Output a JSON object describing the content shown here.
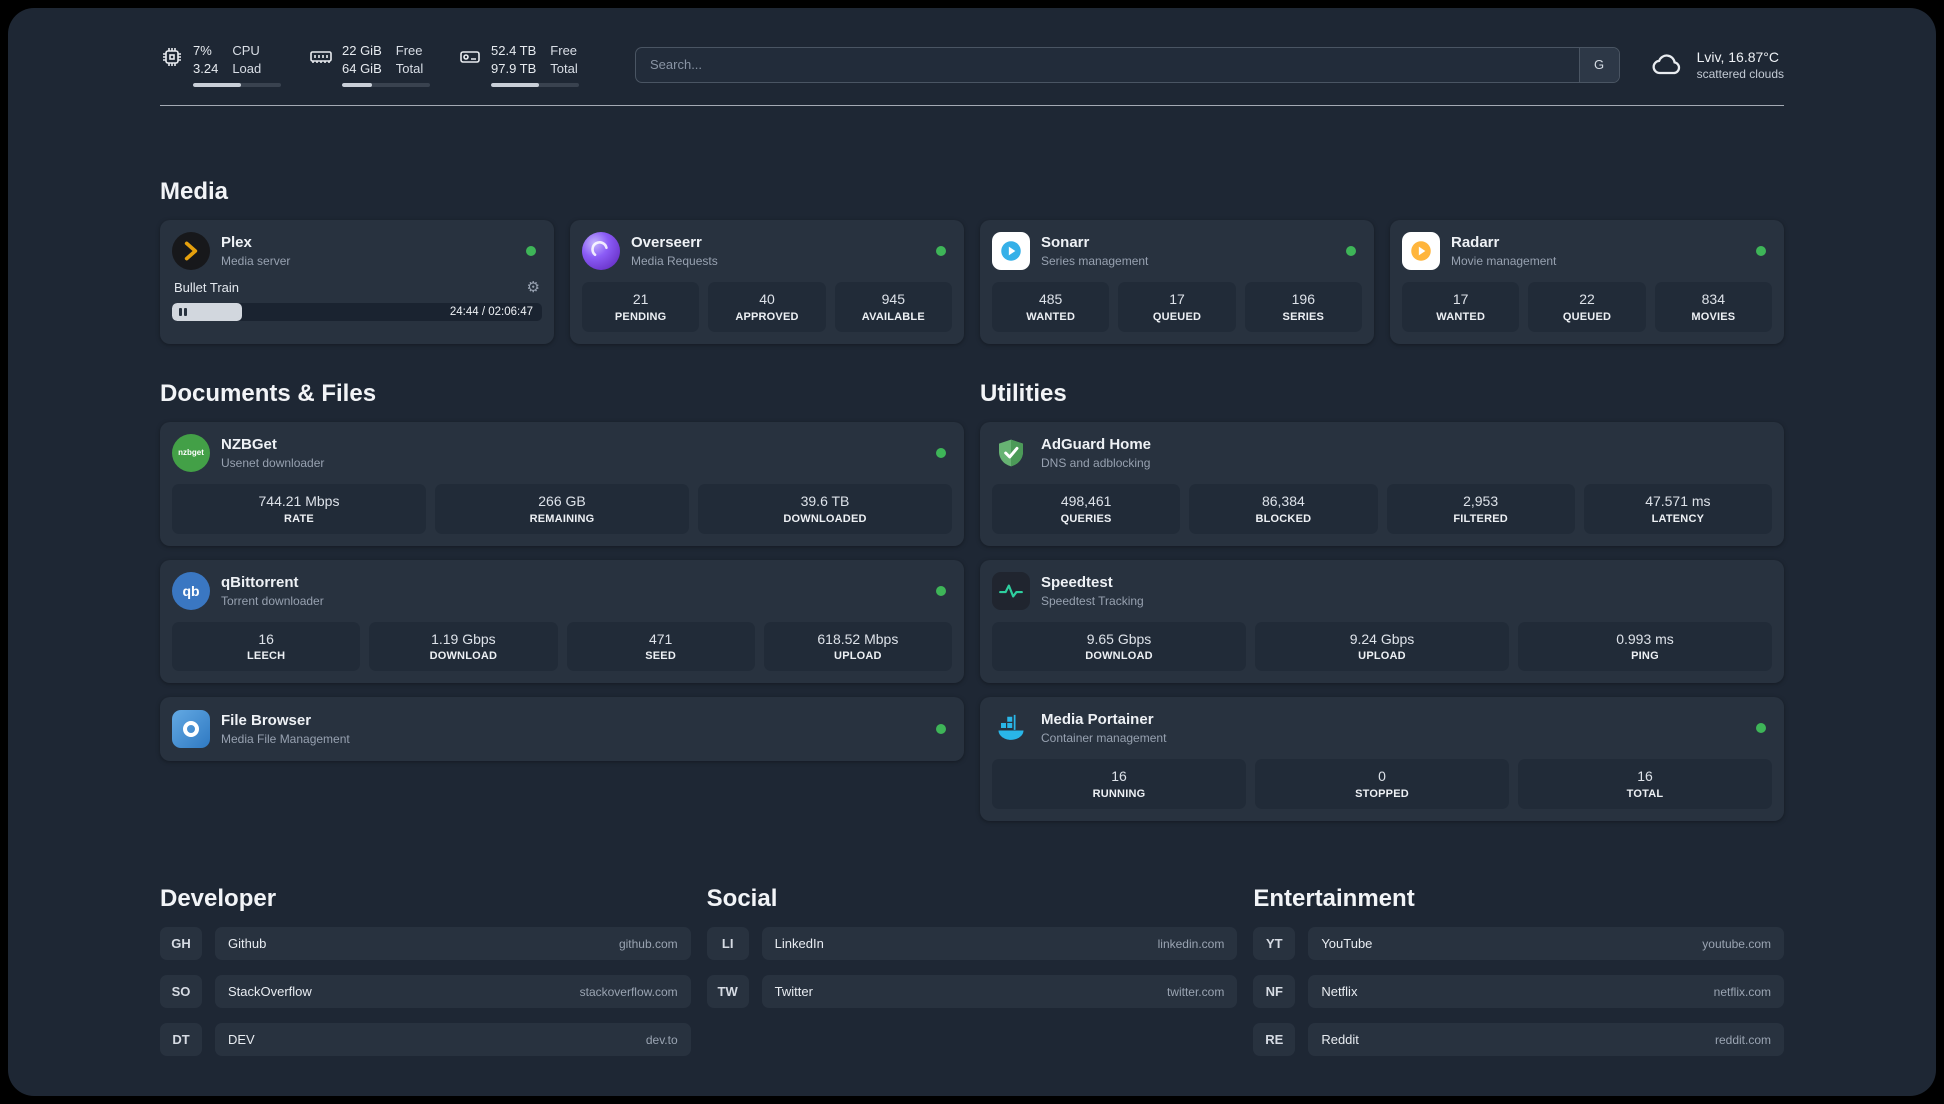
{
  "colors": {
    "accent_green": "#3eb558",
    "app_background": "#1e2734",
    "card_background": "#28323f",
    "plex_amber": "#e5a00d"
  },
  "icons": {
    "gear": "⚙"
  },
  "topbar": {
    "cpu": {
      "value_top": "7%",
      "value_bottom": "3.24",
      "label_top": "CPU",
      "label_bottom": "Load",
      "progress": 55
    },
    "ram": {
      "value_top": "22 GiB",
      "value_bottom": "64 GiB",
      "label_top": "Free",
      "label_bottom": "Total",
      "progress": 34
    },
    "disk": {
      "value_top": "52.4 TB",
      "value_bottom": "97.9 TB",
      "label_top": "Free",
      "label_bottom": "Total",
      "progress": 54
    },
    "search": {
      "placeholder": "Search...",
      "engine_label": "G"
    },
    "weather": {
      "location": "Lviv, 16.87°C",
      "condition": "scattered clouds"
    }
  },
  "sections": {
    "media": {
      "title": "Media",
      "apps": [
        {
          "name": "Plex",
          "desc": "Media server",
          "online": true,
          "player": {
            "title": "Bullet Train",
            "time": "24:44 / 02:06:47",
            "progress": 19
          }
        },
        {
          "name": "Overseerr",
          "desc": "Media Requests",
          "online": true,
          "stats": [
            {
              "value": "21",
              "label": "PENDING"
            },
            {
              "value": "40",
              "label": "APPROVED"
            },
            {
              "value": "945",
              "label": "AVAILABLE"
            }
          ]
        },
        {
          "name": "Sonarr",
          "desc": "Series management",
          "online": true,
          "stats": [
            {
              "value": "485",
              "label": "WANTED"
            },
            {
              "value": "17",
              "label": "QUEUED"
            },
            {
              "value": "196",
              "label": "SERIES"
            }
          ]
        },
        {
          "name": "Radarr",
          "desc": "Movie management",
          "online": true,
          "stats": [
            {
              "value": "17",
              "label": "WANTED"
            },
            {
              "value": "22",
              "label": "QUEUED"
            },
            {
              "value": "834",
              "label": "MOVIES"
            }
          ]
        }
      ]
    },
    "documents": {
      "title": "Documents & Files",
      "apps": [
        {
          "name": "NZBGet",
          "desc": "Usenet downloader",
          "online": true,
          "icon_text": "nzbget",
          "stats": [
            {
              "value": "744.21 Mbps",
              "label": "RATE"
            },
            {
              "value": "266 GB",
              "label": "REMAINING"
            },
            {
              "value": "39.6 TB",
              "label": "DOWNLOADED"
            }
          ]
        },
        {
          "name": "qBittorrent",
          "desc": "Torrent downloader",
          "online": true,
          "icon_text": "qb",
          "stats": [
            {
              "value": "16",
              "label": "LEECH"
            },
            {
              "value": "1.19 Gbps",
              "label": "DOWNLOAD"
            },
            {
              "value": "471",
              "label": "SEED"
            },
            {
              "value": "618.52 Mbps",
              "label": "UPLOAD"
            }
          ]
        },
        {
          "name": "File Browser",
          "desc": "Media File Management",
          "online": true
        }
      ]
    },
    "utilities": {
      "title": "Utilities",
      "apps": [
        {
          "name": "AdGuard Home",
          "desc": "DNS and adblocking",
          "online": false,
          "stats": [
            {
              "value": "498,461",
              "label": "QUERIES"
            },
            {
              "value": "86,384",
              "label": "BLOCKED"
            },
            {
              "value": "2,953",
              "label": "FILTERED"
            },
            {
              "value": "47.571 ms",
              "label": "LATENCY"
            }
          ]
        },
        {
          "name": "Speedtest",
          "desc": "Speedtest Tracking",
          "online": false,
          "stats": [
            {
              "value": "9.65 Gbps",
              "label": "DOWNLOAD"
            },
            {
              "value": "9.24 Gbps",
              "label": "UPLOAD"
            },
            {
              "value": "0.993 ms",
              "label": "PING"
            }
          ]
        },
        {
          "name": "Media Portainer",
          "desc": "Container management",
          "online": true,
          "stats": [
            {
              "value": "16",
              "label": "RUNNING"
            },
            {
              "value": "0",
              "label": "STOPPED"
            },
            {
              "value": "16",
              "label": "TOTAL"
            }
          ]
        }
      ]
    }
  },
  "bookmarks": [
    {
      "title": "Developer",
      "links": [
        {
          "abbr": "GH",
          "name": "Github",
          "url": "github.com"
        },
        {
          "abbr": "SO",
          "name": "StackOverflow",
          "url": "stackoverflow.com"
        },
        {
          "abbr": "DT",
          "name": "DEV",
          "url": "dev.to"
        }
      ]
    },
    {
      "title": "Social",
      "links": [
        {
          "abbr": "LI",
          "name": "LinkedIn",
          "url": "linkedin.com"
        },
        {
          "abbr": "TW",
          "name": "Twitter",
          "url": "twitter.com"
        }
      ]
    },
    {
      "title": "Entertainment",
      "links": [
        {
          "abbr": "YT",
          "name": "YouTube",
          "url": "youtube.com"
        },
        {
          "abbr": "NF",
          "name": "Netflix",
          "url": "netflix.com"
        },
        {
          "abbr": "RE",
          "name": "Reddit",
          "url": "reddit.com"
        }
      ]
    }
  ]
}
